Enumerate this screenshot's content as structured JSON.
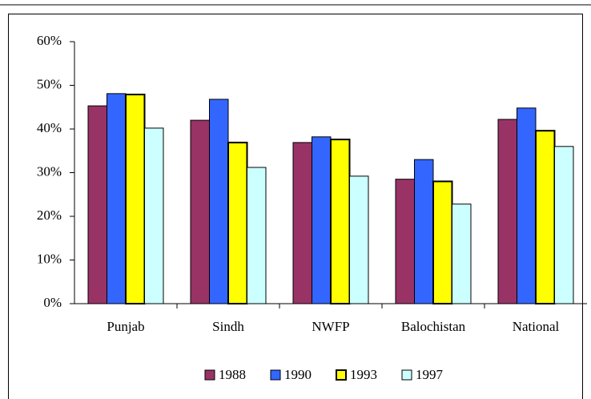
{
  "chart_data": {
    "type": "bar",
    "categories": [
      "Punjab",
      "Sindh",
      "NWFP",
      "Balochistan",
      "National"
    ],
    "series": [
      {
        "name": "1988",
        "color": "#993366",
        "values": [
          45.3,
          42.0,
          36.9,
          28.5,
          42.2
        ]
      },
      {
        "name": "1990",
        "color": "#3366ff",
        "values": [
          48.1,
          46.8,
          38.2,
          33.0,
          44.8
        ]
      },
      {
        "name": "1993",
        "color": "#ffff00",
        "values": [
          47.9,
          36.9,
          37.6,
          28.0,
          39.6
        ]
      },
      {
        "name": "1997",
        "color": "#ccffff",
        "values": [
          40.2,
          31.2,
          29.2,
          22.8,
          36.0
        ]
      }
    ],
    "ylim": [
      0,
      60
    ],
    "yticks": [
      {
        "value": 0,
        "label": "0%"
      },
      {
        "value": 10,
        "label": "10%"
      },
      {
        "value": 20,
        "label": "20%"
      },
      {
        "value": 30,
        "label": "30%"
      },
      {
        "value": 40,
        "label": "40%"
      },
      {
        "value": 50,
        "label": "50%"
      },
      {
        "value": 60,
        "label": "60%"
      }
    ],
    "grid": false,
    "legend": "bottom"
  }
}
